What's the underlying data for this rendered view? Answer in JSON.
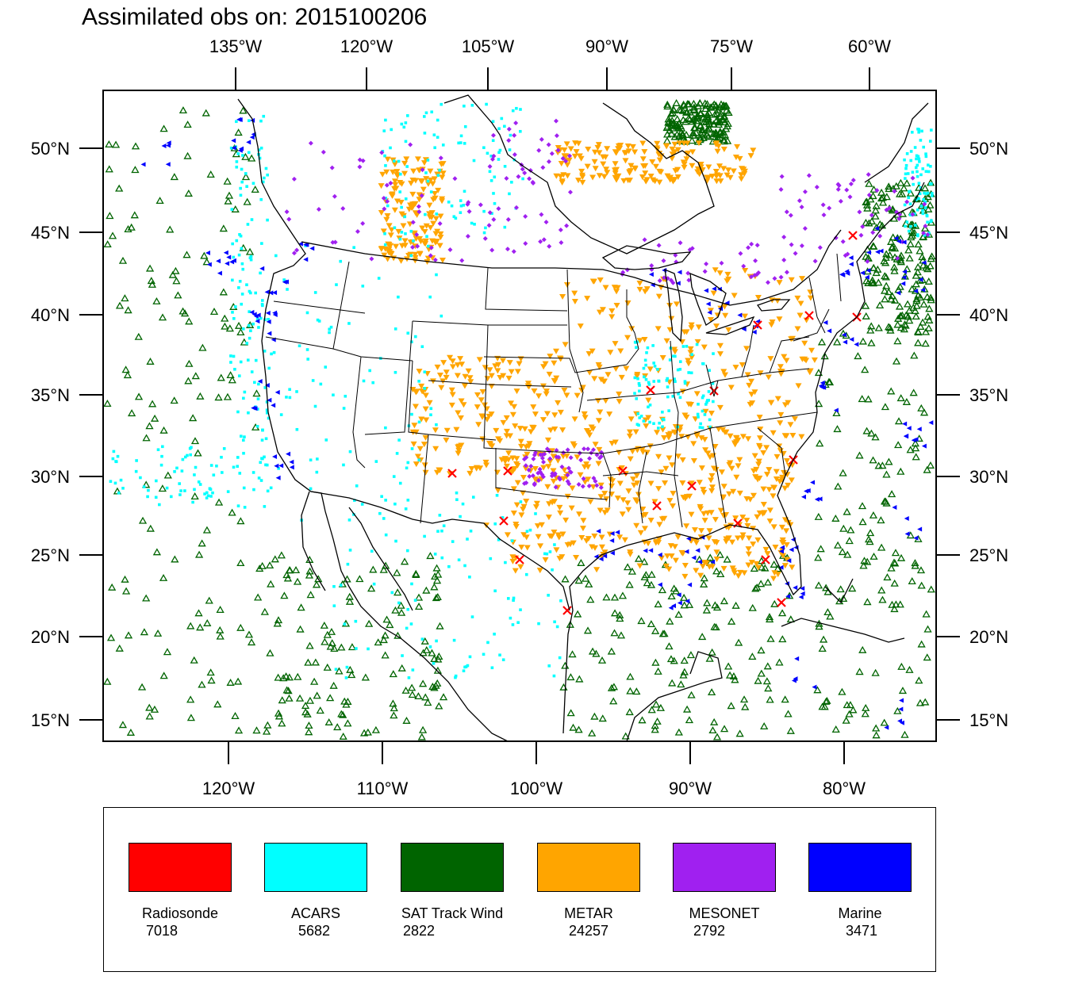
{
  "title": "Assimilated obs on: 2015100206",
  "axes": {
    "top_ticks": [
      "135°W",
      "120°W",
      "105°W",
      "90°W",
      "75°W",
      "60°W"
    ],
    "bottom_ticks": [
      "120°W",
      "110°W",
      "100°W",
      "90°W",
      "80°W"
    ],
    "left_ticks": [
      "50°N",
      "45°N",
      "40°N",
      "35°N",
      "30°N",
      "25°N",
      "20°N",
      "15°N"
    ],
    "right_ticks": [
      "50°N",
      "45°N",
      "40°N",
      "35°N",
      "30°N",
      "25°N",
      "20°N",
      "15°N"
    ]
  },
  "legend": [
    {
      "name": "Radiosonde",
      "count": "7018",
      "color": "#ff0000",
      "marker": "x-marker"
    },
    {
      "name": "ACARS",
      "count": "5682",
      "color": "#00ffff",
      "marker": "square-marker"
    },
    {
      "name": "SAT Track Wind",
      "count": "2822",
      "color": "#006400",
      "marker": "open-triangle-marker"
    },
    {
      "name": "METAR",
      "count": "24257",
      "color": "#ffa500",
      "marker": "down-triangle-marker"
    },
    {
      "name": "MESONET",
      "count": "2792",
      "color": "#a020f0",
      "marker": "diamond-marker"
    },
    {
      "name": "Marine",
      "count": "3471",
      "color": "#0000ff",
      "marker": "left-triangle-marker"
    }
  ]
}
